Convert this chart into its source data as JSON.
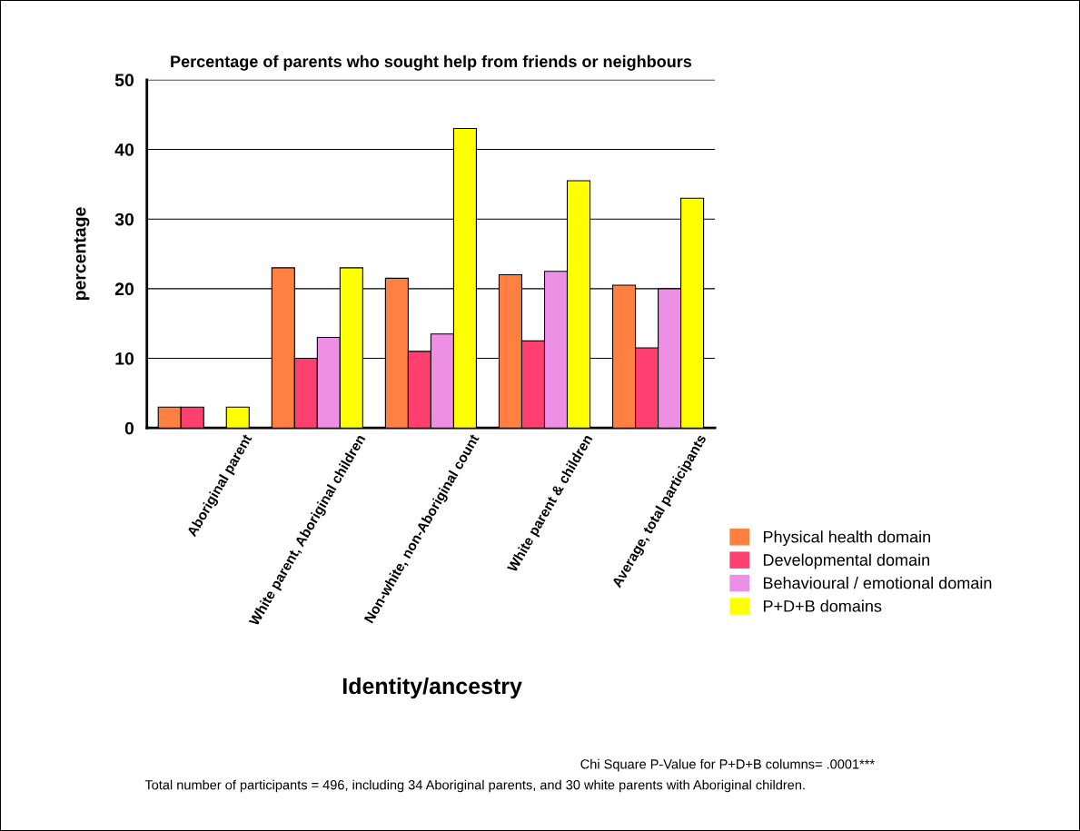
{
  "chart_data": {
    "type": "bar",
    "title": "Percentage of parents who sought help from friends or neighbours",
    "xlabel": "Identity/ancestry",
    "ylabel": "percentage",
    "categories": [
      "Aboriginal parent",
      "White parent, Aboriginal children",
      "Non-white, non-Aboriginal count",
      "White parent & children",
      "Average, total participants"
    ],
    "series": [
      {
        "name": "Physical health domain",
        "color": "#ff8040",
        "values": [
          3,
          23,
          21.5,
          22,
          20.5
        ]
      },
      {
        "name": "Developmental domain",
        "color": "#ff3f6f",
        "values": [
          3,
          10,
          11,
          12.5,
          11.5
        ]
      },
      {
        "name": "Behavioural / emotional domain",
        "color": "#ee8fe6",
        "values": [
          null,
          13,
          13.5,
          22.5,
          20
        ]
      },
      {
        "name": "P+D+B domains",
        "color": "#ffff00",
        "values": [
          3,
          23,
          43,
          35.5,
          33
        ]
      }
    ],
    "ylim": [
      0,
      50
    ],
    "yticks": [
      0,
      10,
      20,
      30,
      40,
      50
    ],
    "grid": "y",
    "legend": "bottom right",
    "annotations": [
      "Chi Square P-Value for P+D+B columns= .0001***",
      "Total number of participants = 496, including 34 Aboriginal parents, and 30 white parents with Aboriginal children."
    ]
  }
}
